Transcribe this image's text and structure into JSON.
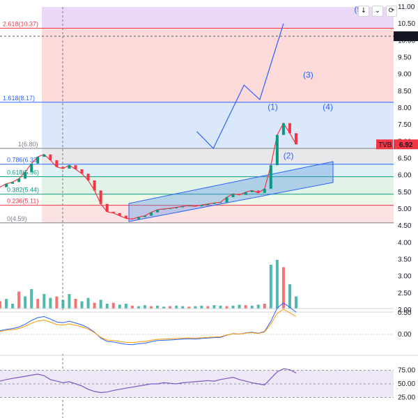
{
  "chart_data": {
    "type": "line",
    "symbol": "TVB",
    "last_price": "6.92",
    "crosshair_price": "10.13",
    "price_axis": {
      "min": 2.0,
      "max": 11.0,
      "ticks": [
        "11.00",
        "10.50",
        "10.00",
        "9.50",
        "9.00",
        "8.50",
        "8.00",
        "7.50",
        "7.00",
        "6.50",
        "6.00",
        "5.50",
        "5.00",
        "4.50",
        "4.00",
        "3.50",
        "3.00",
        "2.50",
        "2.00"
      ]
    },
    "fib_levels": [
      {
        "label": "2.618(10.37)",
        "value": 10.37,
        "color": "#f23645"
      },
      {
        "label": "1.618(8.17)",
        "value": 8.17,
        "color": "#2962ff"
      },
      {
        "label": "1(6.80)",
        "value": 6.8,
        "color": "#787b86"
      },
      {
        "label": "0.786(6.33)",
        "value": 6.33,
        "color": "#2962ff"
      },
      {
        "label": "0.618(5.96)",
        "value": 5.96,
        "color": "#089981"
      },
      {
        "label": "0.382(5.44)",
        "value": 5.44,
        "color": "#089981"
      },
      {
        "label": "0.236(5.11)",
        "value": 5.11,
        "color": "#f23645"
      },
      {
        "label": "0(4.59)",
        "value": 4.59,
        "color": "#787b86"
      }
    ],
    "wave_labels": [
      "(1)",
      "(2)",
      "(3)",
      "(4)",
      "(5)"
    ],
    "projection": [
      {
        "t": 0.5,
        "v": 7.3
      },
      {
        "t": 0.542,
        "v": 6.8
      },
      {
        "t": 0.62,
        "v": 8.68
      },
      {
        "t": 0.66,
        "v": 8.25
      },
      {
        "t": 0.72,
        "v": 10.5
      }
    ],
    "price_series": [
      5.65,
      5.75,
      5.8,
      5.9,
      6.1,
      6.35,
      6.55,
      6.62,
      6.45,
      6.25,
      6.2,
      6.3,
      6.18,
      6.05,
      5.85,
      5.55,
      5.15,
      4.92,
      4.88,
      4.8,
      4.72,
      4.7,
      4.76,
      4.8,
      4.9,
      4.98,
      5.0,
      5.02,
      5.05,
      5.08,
      5.1,
      5.08,
      5.12,
      5.15,
      5.18,
      5.2,
      5.35,
      5.45,
      5.42,
      5.5,
      5.55,
      5.48,
      5.6,
      6.3,
      7.2,
      7.55,
      7.25,
      6.92
    ],
    "macd_axis": [
      "0.50",
      "0.00"
    ],
    "rsi_axis": [
      "75.00",
      "50.00",
      "25.00"
    ],
    "volume": [
      0.15,
      0.2,
      0.1,
      0.35,
      0.25,
      0.4,
      0.2,
      0.3,
      0.22,
      0.25,
      0.18,
      0.3,
      0.2,
      0.15,
      0.22,
      0.12,
      0.18,
      0.1,
      0.12,
      0.08,
      0.1,
      0.06,
      0.05,
      0.07,
      0.05,
      0.06,
      0.04,
      0.05,
      0.06,
      0.05,
      0.04,
      0.05,
      0.06,
      0.05,
      0.07,
      0.06,
      0.05,
      0.06,
      0.08,
      0.07,
      0.06,
      0.08,
      0.1,
      0.9,
      1.0,
      0.85,
      0.5,
      0.25
    ],
    "rsi": [
      55,
      58,
      60,
      62,
      64,
      66,
      68,
      65,
      58,
      55,
      52,
      54,
      50,
      46,
      40,
      36,
      34,
      35,
      38,
      40,
      42,
      44,
      46,
      48,
      50,
      50,
      52,
      51,
      50,
      52,
      53,
      54,
      55,
      56,
      55,
      58,
      60,
      62,
      58,
      55,
      52,
      50,
      48,
      60,
      72,
      78,
      76,
      70
    ]
  }
}
